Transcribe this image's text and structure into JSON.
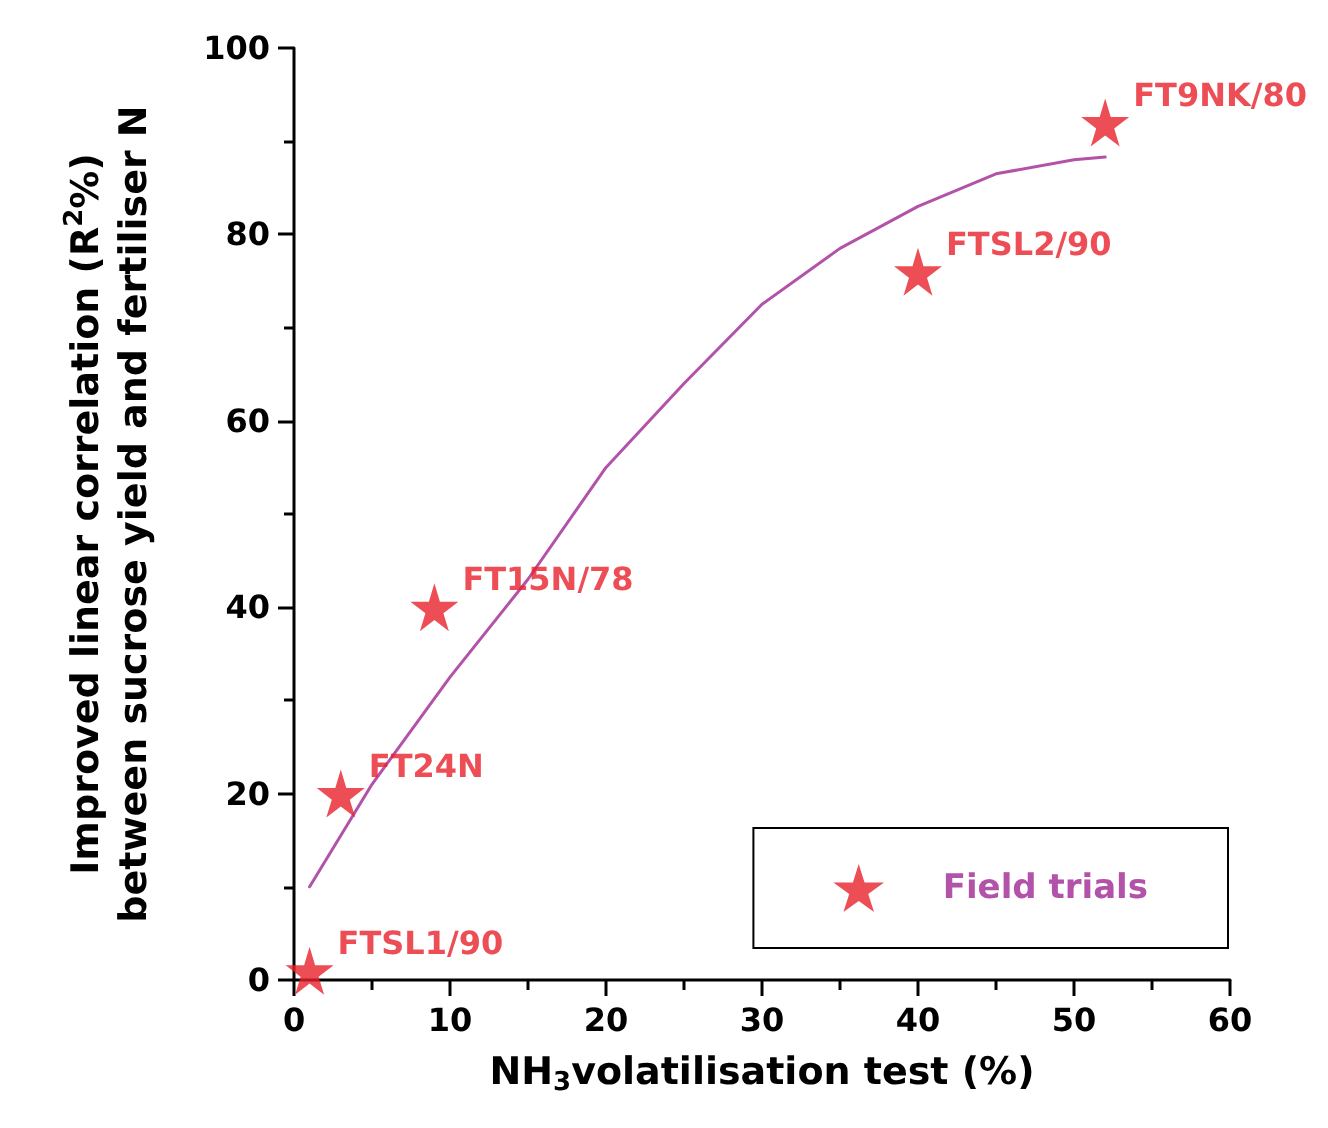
{
  "chart_data": {
    "type": "scatter",
    "xlabel": "NH$_{3}$volatilisation test (%)",
    "ylabel": "Improved linear correlation (R$^{2}$%)\nbetween sucrose yield and fertiliser N",
    "xlim": [
      0,
      60
    ],
    "xticks": [
      0,
      10,
      20,
      30,
      40,
      50,
      60
    ],
    "ylim": [
      0,
      100
    ],
    "yticks": [
      0,
      20,
      40,
      60,
      80,
      100
    ],
    "grid": false,
    "legend": "bottom right",
    "marker": "star",
    "series": [
      {
        "name": "Field trials",
        "color": "#e8202a",
        "x": [
          1,
          3,
          9,
          40,
          52
        ],
        "values": [
          1,
          20,
          40,
          76,
          92
        ]
      },
      {
        "type": "line",
        "color": "#b352a9",
        "marker": "none",
        "line_style": "solid",
        "x": [
          1,
          5,
          10,
          15,
          20,
          25,
          30,
          35,
          40,
          45,
          50,
          52
        ],
        "values": [
          10,
          21,
          32.5,
          43,
          55,
          64,
          72.5,
          78.5,
          83,
          86.5,
          88,
          88.3
        ]
      }
    ],
    "annotations": [
      {
        "text": "FTSL1/90",
        "x": 1,
        "y": 1
      },
      {
        "text": "FT24N",
        "x": 3,
        "y": 20
      },
      {
        "text": "FT15N/78",
        "x": 9,
        "y": 40
      },
      {
        "text": "FTSL2/90",
        "x": 40,
        "y": 76
      },
      {
        "text": "FT9NK/80",
        "x": 52,
        "y": 92
      }
    ]
  }
}
